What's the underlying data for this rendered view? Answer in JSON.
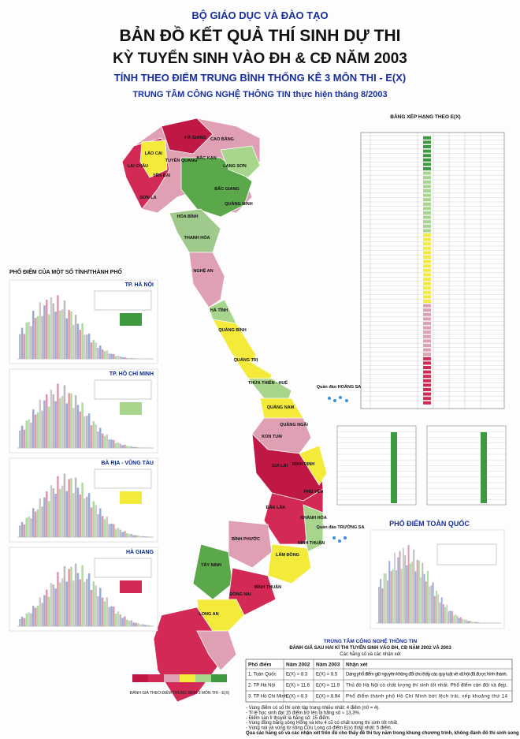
{
  "header": {
    "ministry": "BỘ GIÁO DỤC VÀ ĐÀO TẠO",
    "title": "BẢN ĐỒ KẾT QUẢ THÍ SINH DỰ THI",
    "subtitle": "KỲ TUYỂN SINH VÀO ĐH & CĐ NĂM 2003",
    "method": "TÍNH THEO ĐIỂM TRUNG BÌNH THỐNG KÊ 3 MÔN THI - E(X)",
    "credit": "TRUNG TÂM CÔNG NGHỆ THÔNG TIN thực hiện tháng 8/2003"
  },
  "map": {
    "provinces": [
      "HÀ GIANG",
      "CAO BẰNG",
      "LAI CHÂU",
      "LÀO CAI",
      "TUYÊN QUANG",
      "BẮC KẠN",
      "LẠNG SƠN",
      "YÊN BÁI",
      "SƠN LA",
      "BẮC GIANG",
      "QUẢNG NINH",
      "HÒA BÌNH",
      "THANH HÓA",
      "NGHỆ AN",
      "HÀ TĨNH",
      "QUẢNG BÌNH",
      "QUẢNG TRỊ",
      "THỪA THIÊN - HUẾ",
      "QUẢNG NAM",
      "QUẢNG NGÃI",
      "KON TUM",
      "BÌNH ĐỊNH",
      "GIA LAI",
      "PHÚ YÊN",
      "ĐẮK LẮK",
      "KHÁNH HÒA",
      "LÂM ĐỒNG",
      "NINH THUẬN",
      "BÌNH PHƯỚC",
      "TÂY NINH",
      "BÌNH THUẬN",
      "ĐỒNG NAI",
      "LONG AN"
    ],
    "archipelagos": [
      "Quần đảo HOÀNG SA",
      "Quần đảo TRƯỜNG SA"
    ]
  },
  "left_panels": {
    "title": "PHỔ ĐIỂM CỦA MỘT SỐ TỈNH/THÀNH PHỐ",
    "panels": [
      {
        "name": "TP. HÀ NỘI",
        "color": "#3e9a3e"
      },
      {
        "name": "TP. HỒ CHÍ MINH",
        "color": "#a7d58c"
      },
      {
        "name": "BÀ RỊA - VŨNG TÀU",
        "color": "#f4ea3a"
      },
      {
        "name": "HÀ GIANG",
        "color": "#d22a55"
      }
    ]
  },
  "ranking": {
    "title": "BẢNG XẾP HẠNG THEO E(X)"
  },
  "national": {
    "title": "PHỔ ĐIỂM TOÀN QUỐC"
  },
  "evaluation": {
    "org": "TRUNG TÂM CÔNG NGHỆ THÔNG TIN",
    "title": "ĐÁNH GIÁ SAU HAI KÌ THI TUYỂN SINH VÀO ĐH, CĐ NĂM 2002 VÀ 2003",
    "subtitle": "Các hằng số và các nhận xét",
    "header": [
      "Phổ điểm",
      "Năm 2002",
      "Năm 2003",
      "Nhận xét"
    ],
    "rows": [
      [
        "1. Toàn Quốc",
        "E(X) = 8.3",
        "E(X) = 8.5",
        "Dáng phổ điểm giữ nguyên không đổi cho thấy các quy luật về xã hội đã được hình thành."
      ],
      [
        "2. TP Hà Nội",
        "E(X) = 11.6",
        "E(X) = 11.9",
        "Thủ đô Hà Nội có chất lượng thí sinh tốt nhất. Phổ điểm cân đối và đẹp."
      ],
      [
        "3. TP Hồ Chí Minh",
        "E(X) = 8.3",
        "E(X) = 8.94",
        "Phổ điểm thành phố Hồ Chí Minh bớt lệch trái, xếp khoảng thứ 14"
      ]
    ],
    "notes": [
      "- Vùng điểm có số thí sinh tập trung nhiều nhất: 4 điểm (n0 = 4).",
      "- Tỉ lệ học sinh đạt 15 điểm trở lên là hằng số ≈ 13,3%.",
      "- Điểm sàn lí thuyết là hằng số: 15 điểm.",
      "- Vùng đồng bằng sông Hồng và khu 4 cũ có chất lượng thí sinh tốt nhất.",
      "- Vùng núi và vùng từ sông Cửu Long có điểm E(x) thấp nhất: 5 điểm.",
      "Qua các hằng số và các nhận xét trên đủ cho thấy đề thi tuy năm trong khung chương trình, không đánh đố thí sinh song cũng không phải là dễ."
    ]
  },
  "legend": {
    "caption": "ĐÁNH GIÁ THEO ĐIỂM TRUNG BÌNH 3 MÔN THI - E(X)"
  }
}
